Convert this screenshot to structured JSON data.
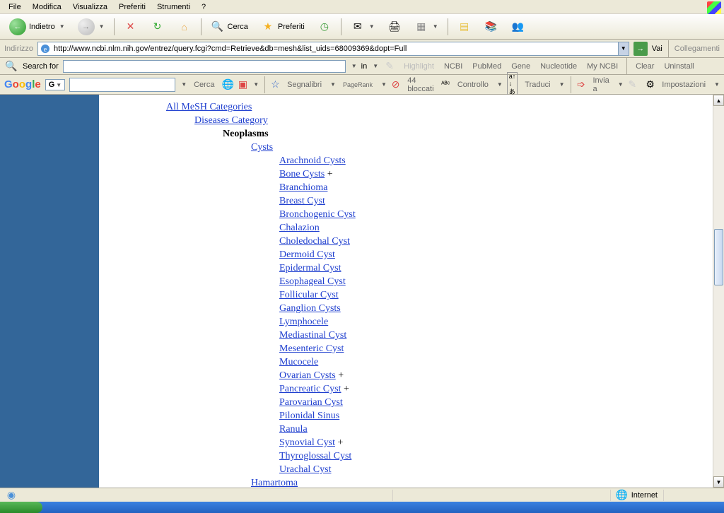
{
  "menu": {
    "items": [
      "File",
      "Modifica",
      "Visualizza",
      "Preferiti",
      "Strumenti",
      "?"
    ]
  },
  "toolbar": {
    "back": "Indietro",
    "search": "Cerca",
    "fav": "Preferiti"
  },
  "address": {
    "label": "Indirizzo",
    "url": "http://www.ncbi.nlm.nih.gov/entrez/query.fcgi?cmd=Retrieve&db=mesh&list_uids=68009369&dopt=Full",
    "go": "Vai",
    "links": "Collegamenti"
  },
  "searchbar": {
    "label": "Search for",
    "in": "in",
    "highlight": "Highlight",
    "links": [
      "NCBI",
      "PubMed",
      "Gene",
      "Nucleotide",
      "My NCBI"
    ],
    "clear": "Clear",
    "uninstall": "Uninstall"
  },
  "google": {
    "cerca": "Cerca",
    "segnalibri": "Segnalibri",
    "pagerank": "PageRank",
    "bloccati": "44 bloccati",
    "controllo": "Controllo",
    "traduci": "Traduci",
    "invia": "Invia a",
    "impostazioni": "Impostazioni"
  },
  "tree": {
    "l0": "All MeSH Categories",
    "l1": "Diseases Category",
    "l2": "Neoplasms",
    "l3a": "Cysts",
    "cysts": [
      {
        "t": "Arachnoid Cysts",
        "p": false
      },
      {
        "t": "Bone Cysts",
        "p": true
      },
      {
        "t": "Branchioma",
        "p": false
      },
      {
        "t": "Breast Cyst",
        "p": false
      },
      {
        "t": "Bronchogenic Cyst",
        "p": false
      },
      {
        "t": "Chalazion",
        "p": false
      },
      {
        "t": "Choledochal Cyst",
        "p": false
      },
      {
        "t": "Dermoid Cyst",
        "p": false
      },
      {
        "t": "Epidermal Cyst",
        "p": false
      },
      {
        "t": "Esophageal Cyst",
        "p": false
      },
      {
        "t": "Follicular Cyst",
        "p": false
      },
      {
        "t": "Ganglion Cysts",
        "p": false
      },
      {
        "t": "Lymphocele",
        "p": false
      },
      {
        "t": "Mediastinal Cyst",
        "p": false
      },
      {
        "t": "Mesenteric Cyst",
        "p": false
      },
      {
        "t": "Mucocele",
        "p": false
      },
      {
        "t": "Ovarian Cysts",
        "p": true
      },
      {
        "t": "Pancreatic Cyst",
        "p": true
      },
      {
        "t": "Parovarian Cyst",
        "p": false
      },
      {
        "t": "Pilonidal Sinus",
        "p": false
      },
      {
        "t": "Ranula",
        "p": false
      },
      {
        "t": "Synovial Cyst",
        "p": true
      },
      {
        "t": "Thyroglossal Cyst",
        "p": false
      },
      {
        "t": "Urachal Cyst",
        "p": false
      }
    ],
    "l3b": "Hamartoma"
  },
  "status": {
    "internet": "Internet"
  }
}
